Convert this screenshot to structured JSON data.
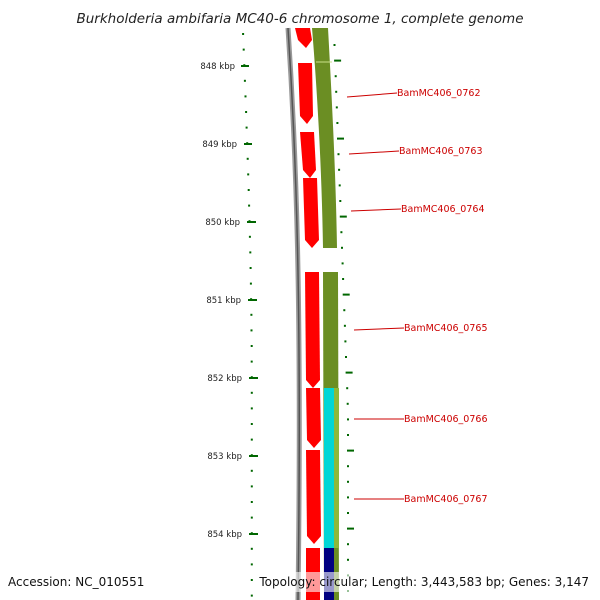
{
  "title": "Burkholderia ambifaria MC40-6 chromosome 1, complete genome",
  "footer": {
    "accession": "Accession: NC_010551",
    "topology": "Topology: circular; Length: 3,443,583 bp; Genes: 3,147"
  },
  "kbp_labels": [
    "848 kbp",
    "849 kbp",
    "850 kbp",
    "851 kbp",
    "852 kbp",
    "853 kbp",
    "854 kbp"
  ],
  "gene_labels": [
    "BamMC406_0762",
    "BamMC406_0763",
    "BamMC406_0764",
    "BamMC406_0765",
    "BamMC406_0766",
    "BamMC406_0767"
  ],
  "colors": {
    "gene_forward": "#ff0000",
    "cds_band": "#6b8e23",
    "cds_band_light": "#8db83a",
    "rna_band": "#00d6d6",
    "misc_band": "#000080",
    "backbone": "#888888",
    "ticks": "#006600",
    "label": "#cc0000"
  }
}
